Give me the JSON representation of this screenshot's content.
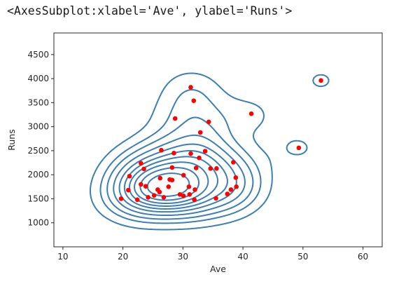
{
  "output_repr": "<AxesSubplot:xlabel='Ave', ylabel='Runs'>",
  "chart_data": {
    "type": "scatter",
    "xlabel": "Ave",
    "ylabel": "Runs",
    "xlim": [
      8.5,
      63.2
    ],
    "ylim": [
      500,
      4950
    ],
    "xticks": [
      10,
      20,
      30,
      40,
      50,
      60
    ],
    "yticks": [
      1000,
      1500,
      2000,
      2500,
      3000,
      3500,
      4000,
      4500
    ],
    "colors": {
      "points": "#ff0000",
      "kde": "#3b7fb5",
      "axes": "#262626"
    },
    "points": [
      {
        "x": 19.7,
        "y": 1500
      },
      {
        "x": 20.9,
        "y": 1680
      },
      {
        "x": 21.1,
        "y": 1970
      },
      {
        "x": 22.4,
        "y": 1480
      },
      {
        "x": 23.0,
        "y": 1800
      },
      {
        "x": 23.0,
        "y": 2240
      },
      {
        "x": 23.5,
        "y": 2120
      },
      {
        "x": 23.8,
        "y": 1760
      },
      {
        "x": 24.2,
        "y": 1530
      },
      {
        "x": 25.2,
        "y": 1570
      },
      {
        "x": 25.8,
        "y": 1690
      },
      {
        "x": 26.1,
        "y": 1640
      },
      {
        "x": 26.4,
        "y": 2510
      },
      {
        "x": 26.2,
        "y": 1930
      },
      {
        "x": 26.8,
        "y": 1530
      },
      {
        "x": 27.6,
        "y": 1750
      },
      {
        "x": 27.8,
        "y": 1900
      },
      {
        "x": 28.2,
        "y": 1890
      },
      {
        "x": 28.2,
        "y": 2150
      },
      {
        "x": 28.5,
        "y": 2450
      },
      {
        "x": 28.7,
        "y": 3170
      },
      {
        "x": 29.5,
        "y": 1590
      },
      {
        "x": 30.1,
        "y": 1560
      },
      {
        "x": 30.1,
        "y": 1990
      },
      {
        "x": 31.0,
        "y": 1750
      },
      {
        "x": 31.1,
        "y": 1590
      },
      {
        "x": 31.3,
        "y": 2440
      },
      {
        "x": 31.3,
        "y": 3820
      },
      {
        "x": 31.8,
        "y": 3540
      },
      {
        "x": 31.9,
        "y": 1480
      },
      {
        "x": 32.0,
        "y": 1690
      },
      {
        "x": 32.2,
        "y": 2140
      },
      {
        "x": 32.7,
        "y": 2350
      },
      {
        "x": 32.9,
        "y": 2880
      },
      {
        "x": 33.7,
        "y": 2490
      },
      {
        "x": 34.3,
        "y": 3100
      },
      {
        "x": 34.6,
        "y": 2130
      },
      {
        "x": 35.5,
        "y": 1510
      },
      {
        "x": 35.6,
        "y": 2130
      },
      {
        "x": 37.4,
        "y": 1600
      },
      {
        "x": 38.0,
        "y": 1690
      },
      {
        "x": 38.4,
        "y": 2260
      },
      {
        "x": 38.8,
        "y": 1940
      },
      {
        "x": 38.9,
        "y": 1750
      },
      {
        "x": 41.4,
        "y": 3270
      },
      {
        "x": 49.3,
        "y": 2560
      },
      {
        "x": 53.0,
        "y": 3960
      }
    ]
  }
}
